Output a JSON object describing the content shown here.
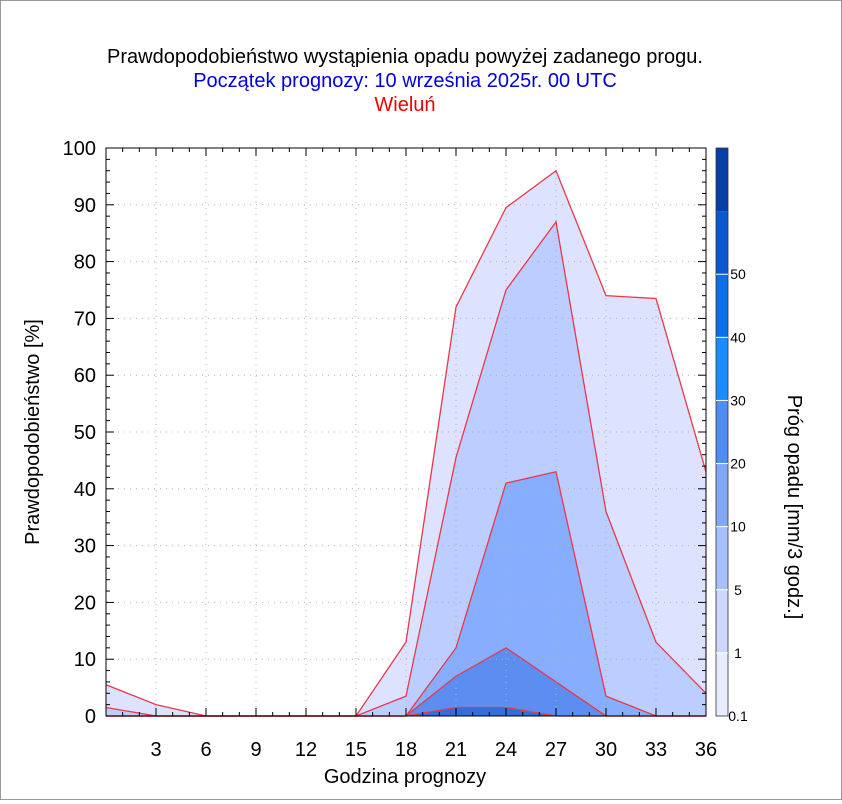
{
  "header": {
    "title": "Prawdopodobieństwo wystąpienia opadu powyżej zadanego progu.",
    "subtitle": "Początek prognozy: 10 września 2025r. 00 UTC",
    "location": "Wieluń"
  },
  "colors": {
    "title": "#000000",
    "subtitle": "#0000dd",
    "location": "#ee0000",
    "series_line": "#e8384a",
    "frame": "#000000"
  },
  "chart_data": {
    "type": "area",
    "title": "Prawdopodobieństwo wystąpienia opadu powyżej zadanego progu.",
    "xlabel": "Godzina prognozy",
    "ylabel": "Prawdopodobieństwo [%]",
    "xlim": [
      0,
      36
    ],
    "ylim": [
      0,
      100
    ],
    "grid": true,
    "x": [
      0,
      3,
      6,
      9,
      12,
      15,
      18,
      21,
      24,
      27,
      30,
      33,
      36
    ],
    "x_ticks": [
      "3",
      "6",
      "9",
      "12",
      "15",
      "18",
      "21",
      "24",
      "27",
      "30",
      "33",
      "36"
    ],
    "y_ticks": [
      "0",
      "10",
      "20",
      "30",
      "40",
      "50",
      "60",
      "70",
      "80",
      "90",
      "100"
    ],
    "series": [
      {
        "name": "0.1",
        "color": "#dde3ff",
        "values": [
          5.5,
          2,
          0,
          0,
          0,
          0,
          13,
          72,
          89.5,
          96,
          74,
          73.5,
          43
        ]
      },
      {
        "name": "1",
        "color": "#bccdff",
        "values": [
          1.5,
          0,
          0,
          0,
          0,
          0,
          3.5,
          45.5,
          75,
          87,
          36,
          13,
          4
        ]
      },
      {
        "name": "5",
        "color": "#87adff",
        "values": [
          0,
          0,
          0,
          0,
          0,
          0,
          0,
          12,
          41,
          43,
          3.5,
          0,
          0
        ]
      },
      {
        "name": "10",
        "color": "#5b8ef0",
        "values": [
          0,
          0,
          0,
          0,
          0,
          0,
          0,
          7,
          12,
          6,
          0,
          0,
          0
        ]
      },
      {
        "name": "20",
        "color": "#2f6ee0",
        "values": [
          0,
          0,
          0,
          0,
          0,
          0,
          0,
          1.5,
          1.5,
          0,
          0,
          0,
          0
        ]
      }
    ],
    "colorbar": {
      "label": "Próg opadu [mm/3 godz.]",
      "tick_labels": [
        "0.1",
        "1",
        "5",
        "10",
        "20",
        "30",
        "40",
        "50"
      ],
      "band_colors": [
        "#e8ecff",
        "#ccd6ff",
        "#a7c0ff",
        "#80a8f5",
        "#4f8df5",
        "#1a8cff",
        "#0b6fe8",
        "#0a58cf",
        "#083ea8"
      ]
    }
  }
}
